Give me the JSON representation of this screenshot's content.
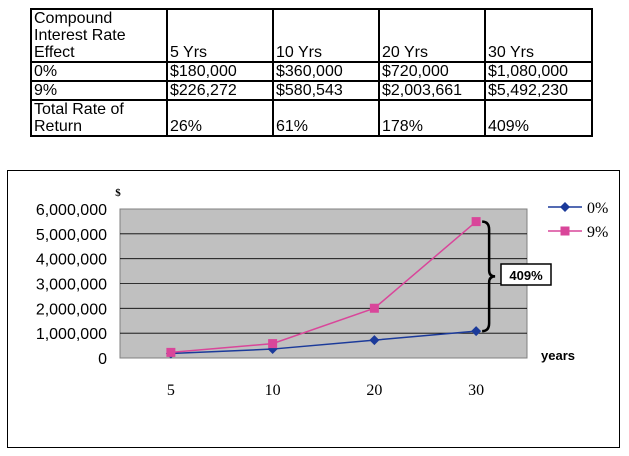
{
  "table": {
    "header": [
      "Compound\nInterest Rate\nEffect",
      "5 Yrs",
      "10 Yrs",
      "20 Yrs",
      "30 Yrs"
    ],
    "rows": [
      [
        "0%",
        "$180,000",
        "$360,000",
        "$720,000",
        "$1,080,000"
      ],
      [
        "9%",
        "$226,272",
        "$580,543",
        "$2,003,661",
        "$5,492,230"
      ],
      [
        "Total Rate of\nReturn",
        "26%",
        "61%",
        "178%",
        "409%"
      ]
    ]
  },
  "chart_data": {
    "type": "line",
    "categories": [
      "5",
      "10",
      "20",
      "30"
    ],
    "series": [
      {
        "name": "0%",
        "values": [
          180000,
          360000,
          720000,
          1080000
        ],
        "color": "#1b3a9a",
        "marker": "diamond"
      },
      {
        "name": "9%",
        "values": [
          226272,
          580543,
          2003661,
          5492230
        ],
        "color": "#d9469a",
        "marker": "square"
      }
    ],
    "ylabel": "$",
    "xlabel": "years",
    "ylim": [
      0,
      6000000
    ],
    "yticks": [
      "0",
      "1,000,000",
      "2,000,000",
      "3,000,000",
      "4,000,000",
      "5,000,000",
      "6,000,000"
    ],
    "annotation": "409%",
    "legend_position": "right",
    "plot_background": "#c0c0c0",
    "grid": true
  }
}
